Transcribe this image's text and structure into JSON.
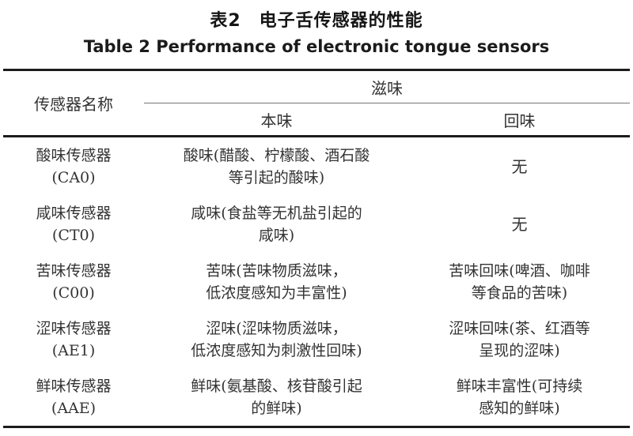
{
  "title": {
    "zh": "表2　电子舌传感器的性能",
    "en": "Table 2 Performance of electronic tongue sensors"
  },
  "table": {
    "header": {
      "sensor": "传感器名称",
      "taste_group": "滋味",
      "base_taste": "本味",
      "aftertaste": "回味"
    },
    "rows": [
      {
        "sensor": "酸味传感器\n(CA0)",
        "base": "酸味(醋酸、柠檬酸、酒石酸\n等引起的酸味)",
        "after": "无"
      },
      {
        "sensor": "咸味传感器\n(CT0)",
        "base": "咸味(食盐等无机盐引起的\n咸味)",
        "after": "无"
      },
      {
        "sensor": "苦味传感器\n(C00)",
        "base": "苦味(苦味物质滋味，\n低浓度感知为丰富性)",
        "after": "苦味回味(啤酒、咖啡\n等食品的苦味)"
      },
      {
        "sensor": "涩味传感器\n(AE1)",
        "base": "涩味(涩味物质滋味，\n低浓度感知为刺激性回味)",
        "after": "涩味回味(茶、红酒等\n呈现的涩味)"
      },
      {
        "sensor": "鲜味传感器\n(AAE)",
        "base": "鲜味(氨基酸、核苷酸引起\n的鲜味)",
        "after": "鲜味丰富性(可持续\n感知的鲜味)"
      }
    ]
  },
  "colors": {
    "rule_heavy": "#1c1c1c",
    "rule_light": "#777777",
    "text": "#333333"
  }
}
